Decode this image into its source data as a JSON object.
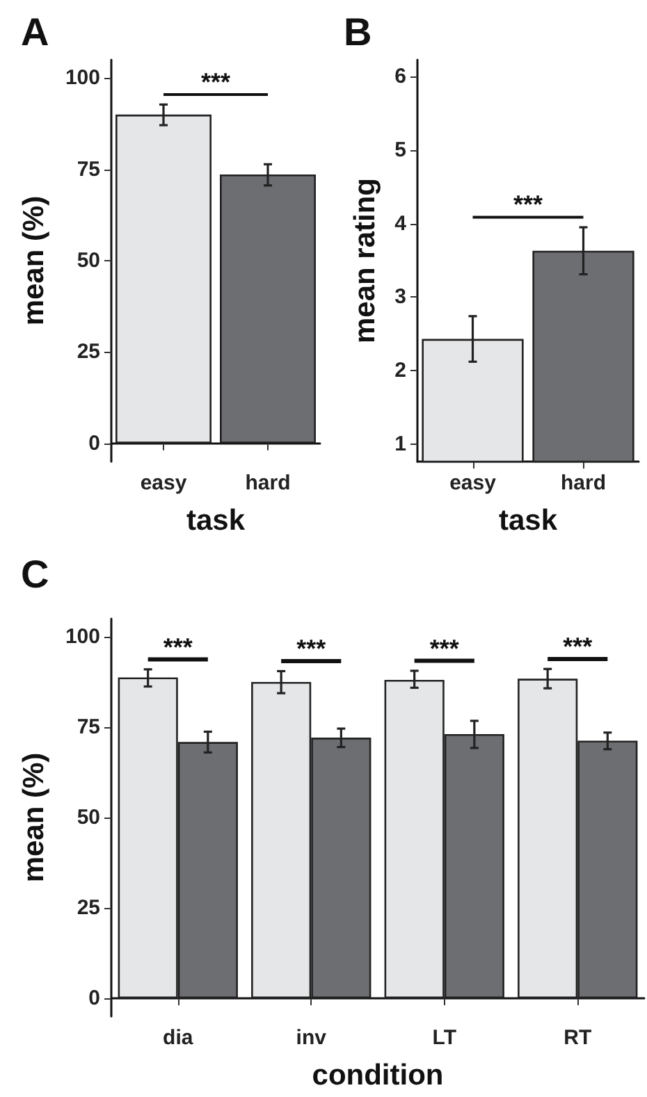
{
  "chart_data": [
    {
      "type": "bar",
      "title": "A",
      "xlabel": "task",
      "ylabel": "mean (%)",
      "categories": [
        "easy",
        "hard"
      ],
      "values": [
        90,
        73.6
      ],
      "colors": [
        "#e5e6e8",
        "#6d6e72"
      ],
      "errors": [
        [
          87.1,
          92.75
        ],
        [
          70.6,
          76.4
        ]
      ],
      "ylim": [
        -5,
        105
      ],
      "yticks": [
        0,
        25,
        50,
        75,
        100
      ],
      "grid": false,
      "annotations": [
        "***"
      ]
    },
    {
      "type": "bar",
      "title": "B",
      "xlabel": "task",
      "ylabel": "mean rating",
      "categories": [
        "easy",
        "hard"
      ],
      "values": [
        2.43,
        3.63
      ],
      "colors": [
        "#e5e6e8",
        "#6d6e72"
      ],
      "errors": [
        [
          2.12,
          2.74
        ],
        [
          3.31,
          3.95
        ]
      ],
      "ylim": [
        0.76,
        6.23
      ],
      "yticks": [
        1,
        2,
        3,
        4,
        5,
        6
      ],
      "grid": false,
      "annotations": [
        "***"
      ]
    },
    {
      "type": "bar",
      "title": "C",
      "xlabel": "condition",
      "ylabel": "mean (%)",
      "categories": [
        "dia",
        "inv",
        "LT",
        "RT"
      ],
      "series": [
        {
          "color": "#e5e6e8",
          "values": [
            88.75,
            87.5,
            88.1,
            88.4
          ],
          "errors": [
            [
              86.25,
              91
            ],
            [
              84.4,
              90.5
            ],
            [
              85.9,
              90.6
            ],
            [
              85.75,
              91.1
            ]
          ]
        },
        {
          "color": "#6d6e72",
          "values": [
            70.9,
            72.1,
            73.1,
            71.25
          ],
          "errors": [
            [
              68,
              73.75
            ],
            [
              69.5,
              74.6
            ],
            [
              69.25,
              76.75
            ],
            [
              68.9,
              73.5
            ]
          ]
        }
      ],
      "ylim": [
        -5,
        105
      ],
      "yticks": [
        0,
        25,
        50,
        75,
        100
      ],
      "grid": false,
      "annotations": [
        "***",
        "***",
        "***",
        "***"
      ]
    }
  ]
}
